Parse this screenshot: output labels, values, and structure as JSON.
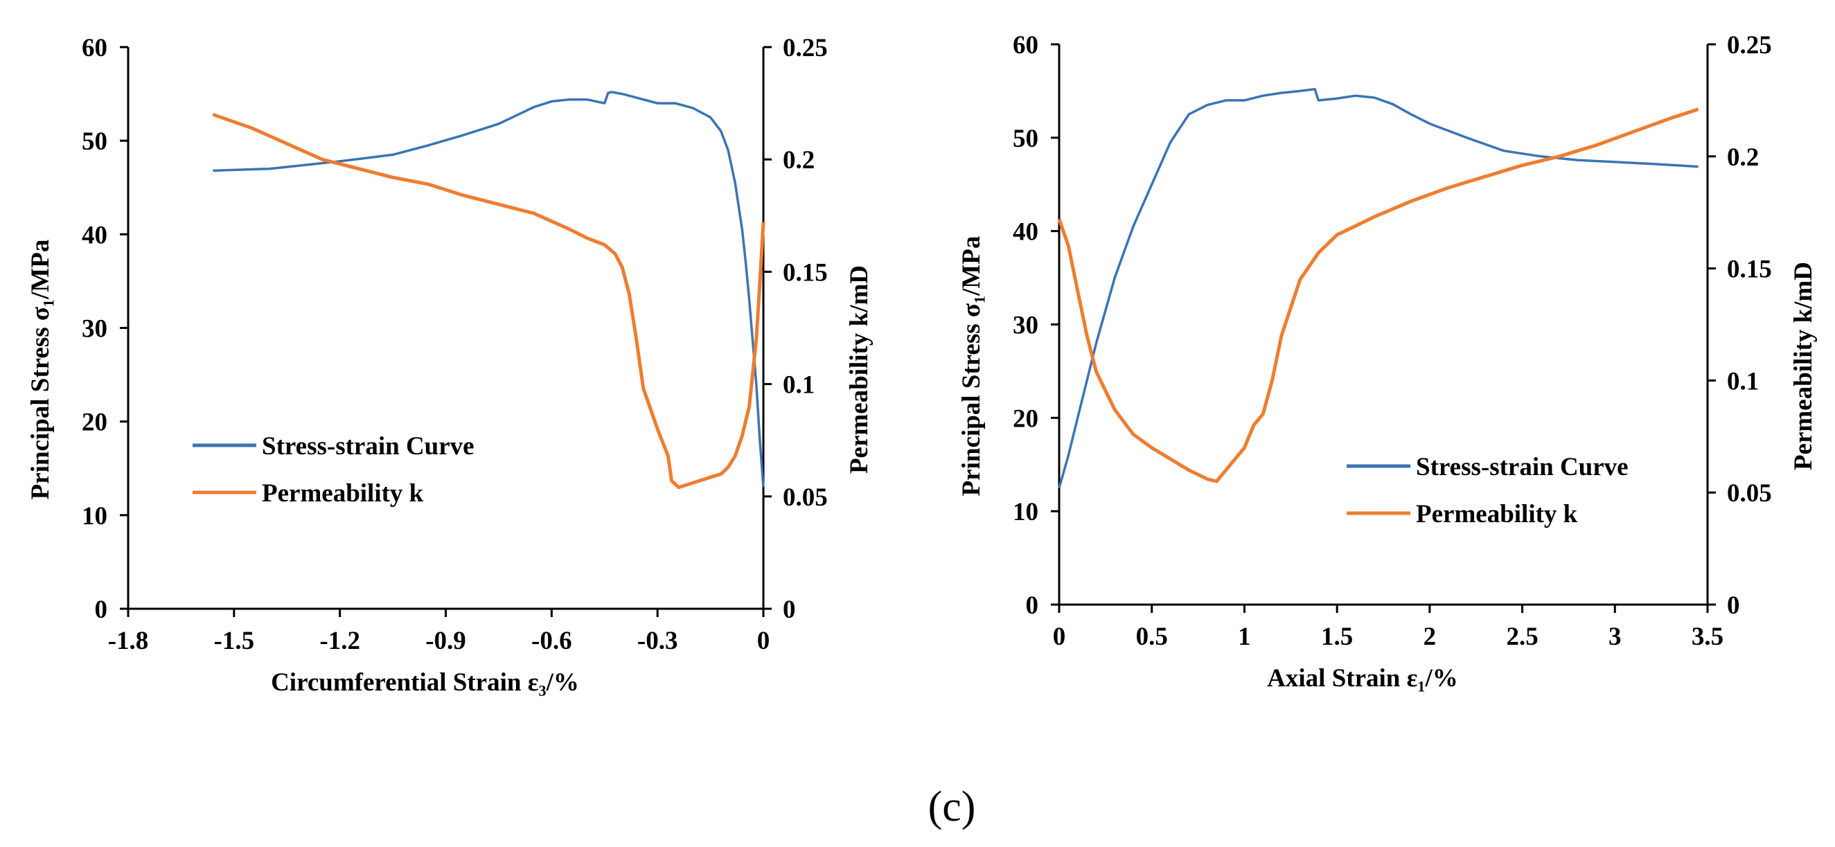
{
  "caption": "(c)",
  "colors": {
    "stress": "#3A74B4",
    "permeability": "#EE7D31",
    "axis": "#000000"
  },
  "chart_data": [
    {
      "type": "line",
      "xlabel": "Circumferential Strain ε₃/%",
      "ylabel": "Principal Stress σ₁/MPa",
      "y2label": "Permeability k/mD",
      "xlim": [
        -1.8,
        0
      ],
      "ylim": [
        0,
        60
      ],
      "y2lim": [
        0,
        0.25
      ],
      "x_ticks": [
        "-1.8",
        "-1.5",
        "-1.2",
        "-0.9",
        "-0.6",
        "-0.3",
        "0"
      ],
      "y_ticks": [
        "0",
        "10",
        "20",
        "30",
        "40",
        "50",
        "60"
      ],
      "y2_ticks": [
        "0",
        "0.05",
        "0.1",
        "0.15",
        "0.2",
        "0.25"
      ],
      "legend_position": "center-left",
      "series": [
        {
          "name": "Stress-strain Curve",
          "axis": "left",
          "x": [
            -1.56,
            -1.4,
            -1.2,
            -1.05,
            -0.95,
            -0.85,
            -0.75,
            -0.65,
            -0.6,
            -0.55,
            -0.5,
            -0.45,
            -0.44,
            -0.43,
            -0.4,
            -0.35,
            -0.3,
            -0.25,
            -0.2,
            -0.15,
            -0.12,
            -0.1,
            -0.08,
            -0.06,
            -0.05,
            -0.04,
            -0.03,
            -0.02,
            -0.01,
            0
          ],
          "y": [
            46.8,
            47.0,
            47.8,
            48.5,
            49.5,
            50.6,
            51.8,
            53.6,
            54.2,
            54.4,
            54.4,
            54.0,
            55.1,
            55.2,
            55.0,
            54.5,
            54.0,
            54.0,
            53.5,
            52.5,
            51.0,
            49.0,
            45.5,
            40.5,
            37.0,
            33.0,
            28.5,
            24.0,
            18.0,
            13.0
          ]
        },
        {
          "name": "Permeability k",
          "axis": "right",
          "x": [
            -1.56,
            -1.45,
            -1.35,
            -1.25,
            -1.15,
            -1.05,
            -0.95,
            -0.85,
            -0.75,
            -0.65,
            -0.55,
            -0.5,
            -0.45,
            -0.42,
            -0.4,
            -0.38,
            -0.36,
            -0.34,
            -0.3,
            -0.27,
            -0.26,
            -0.24,
            -0.2,
            -0.16,
            -0.12,
            -0.1,
            -0.08,
            -0.06,
            -0.04,
            -0.02,
            -0.01,
            0
          ],
          "y": [
            0.22,
            0.214,
            0.207,
            0.2,
            0.196,
            0.192,
            0.189,
            0.184,
            0.18,
            0.176,
            0.169,
            0.165,
            0.162,
            0.158,
            0.152,
            0.14,
            0.12,
            0.098,
            0.08,
            0.068,
            0.057,
            0.054,
            0.056,
            0.058,
            0.06,
            0.063,
            0.068,
            0.077,
            0.09,
            0.12,
            0.145,
            0.172
          ]
        }
      ]
    },
    {
      "type": "line",
      "xlabel": "Axial Strain ε₁/%",
      "ylabel": "Principal Stress σ₁/MPa",
      "y2label": "Permeability k/mD",
      "xlim": [
        0,
        3.5
      ],
      "ylim": [
        0,
        60
      ],
      "y2lim": [
        0,
        0.25
      ],
      "x_ticks": [
        "0",
        "0.5",
        "1",
        "1.5",
        "2",
        "2.5",
        "3",
        "3.5"
      ],
      "y_ticks": [
        "0",
        "10",
        "20",
        "30",
        "40",
        "50",
        "60"
      ],
      "y2_ticks": [
        "0",
        "0.05",
        "0.1",
        "0.15",
        "0.2",
        "0.25"
      ],
      "legend_position": "center-right",
      "series": [
        {
          "name": "Stress-strain Curve",
          "axis": "left",
          "x": [
            0,
            0.05,
            0.1,
            0.15,
            0.2,
            0.3,
            0.4,
            0.5,
            0.6,
            0.7,
            0.8,
            0.9,
            1.0,
            1.1,
            1.2,
            1.3,
            1.38,
            1.4,
            1.5,
            1.6,
            1.7,
            1.8,
            1.9,
            2.0,
            2.2,
            2.4,
            2.6,
            2.8,
            3.0,
            3.2,
            3.45
          ],
          "y": [
            12.5,
            16.0,
            20.0,
            24.0,
            28.0,
            35.0,
            40.5,
            45.0,
            49.5,
            52.5,
            53.5,
            54.0,
            54.0,
            54.5,
            54.8,
            55.0,
            55.2,
            54.0,
            54.2,
            54.5,
            54.3,
            53.6,
            52.5,
            51.5,
            50.0,
            48.6,
            48.0,
            47.6,
            47.4,
            47.2,
            46.9
          ]
        },
        {
          "name": "Permeability k",
          "axis": "right",
          "x": [
            0,
            0.05,
            0.1,
            0.15,
            0.2,
            0.3,
            0.4,
            0.5,
            0.6,
            0.7,
            0.8,
            0.85,
            0.9,
            1.0,
            1.05,
            1.1,
            1.15,
            1.2,
            1.3,
            1.4,
            1.5,
            1.7,
            1.9,
            2.1,
            2.3,
            2.5,
            2.7,
            2.9,
            3.1,
            3.3,
            3.45
          ],
          "y": [
            0.172,
            0.16,
            0.14,
            0.12,
            0.104,
            0.087,
            0.076,
            0.07,
            0.065,
            0.06,
            0.056,
            0.055,
            0.06,
            0.07,
            0.08,
            0.085,
            0.1,
            0.12,
            0.145,
            0.157,
            0.165,
            0.173,
            0.18,
            0.186,
            0.191,
            0.196,
            0.2,
            0.205,
            0.211,
            0.217,
            0.221
          ]
        }
      ]
    }
  ]
}
